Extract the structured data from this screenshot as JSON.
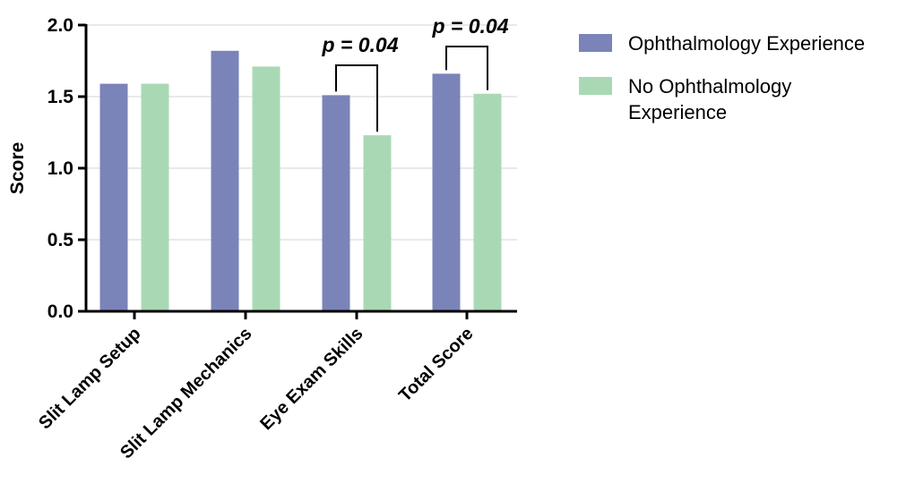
{
  "chart_data": {
    "type": "bar",
    "categories": [
      "Slit Lamp Setup",
      "Slit Lamp Mechanics",
      "Eye Exam Skills",
      "Total Score"
    ],
    "series": [
      {
        "name": "Ophthalmology Experience",
        "color": "#7b84b8",
        "values": [
          1.59,
          1.82,
          1.51,
          1.66
        ]
      },
      {
        "name": "No Ophthalmology Experience",
        "color": "#a9d9b4",
        "values": [
          1.59,
          1.71,
          1.23,
          1.52
        ]
      }
    ],
    "legend_lines": [
      [
        "Ophthalmology Experience"
      ],
      [
        "No Ophthalmology",
        "Experience"
      ]
    ],
    "ylabel": "Score",
    "ylim": [
      0,
      2.0
    ],
    "yticks": [
      "0.0",
      "0.5",
      "1.0",
      "1.5",
      "2.0"
    ],
    "ytick_values": [
      0,
      0.5,
      1.0,
      1.5,
      2.0
    ],
    "grid": true,
    "legend_position": "top-right",
    "annotations": [
      {
        "text": "p = 0.04",
        "category_index": 2
      },
      {
        "text": "p = 0.04",
        "category_index": 3
      }
    ]
  }
}
